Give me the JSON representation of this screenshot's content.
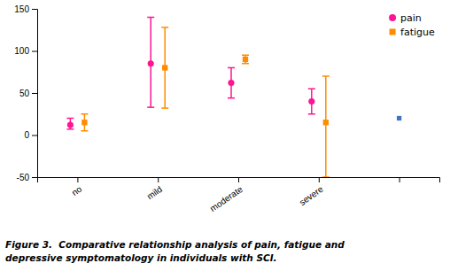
{
  "chart_data": {
    "type": "scatter",
    "categories": [
      "no",
      "mild",
      "moderate",
      "severe",
      null
    ],
    "series": [
      {
        "name": "pain",
        "color": "#FF1493",
        "marker": "circle",
        "values": [
          12,
          85,
          62,
          40,
          null
        ],
        "yerr_lower": [
          5,
          52,
          18,
          15,
          null
        ],
        "yerr_upper": [
          8,
          55,
          18,
          15,
          null
        ]
      },
      {
        "name": "fatigue",
        "color": "#FF8C00",
        "marker": "square",
        "values": [
          15,
          80,
          90,
          15,
          null
        ],
        "yerr_lower": [
          10,
          48,
          5,
          65,
          null
        ],
        "yerr_upper": [
          10,
          48,
          5,
          55,
          null
        ]
      },
      {
        "color": "#4472C4",
        "marker": "square",
        "values": [
          null,
          null,
          null,
          null,
          20
        ]
      }
    ],
    "ylim": [
      -50,
      150
    ],
    "yticks": [
      -50,
      0,
      50,
      100,
      150
    ],
    "grid": false,
    "legend": "upper right",
    "caption": [
      "Figure 3.  Comparative relationship analysis of pain, fatigue and",
      "depressive symptomatology in individuals with SCI."
    ]
  }
}
